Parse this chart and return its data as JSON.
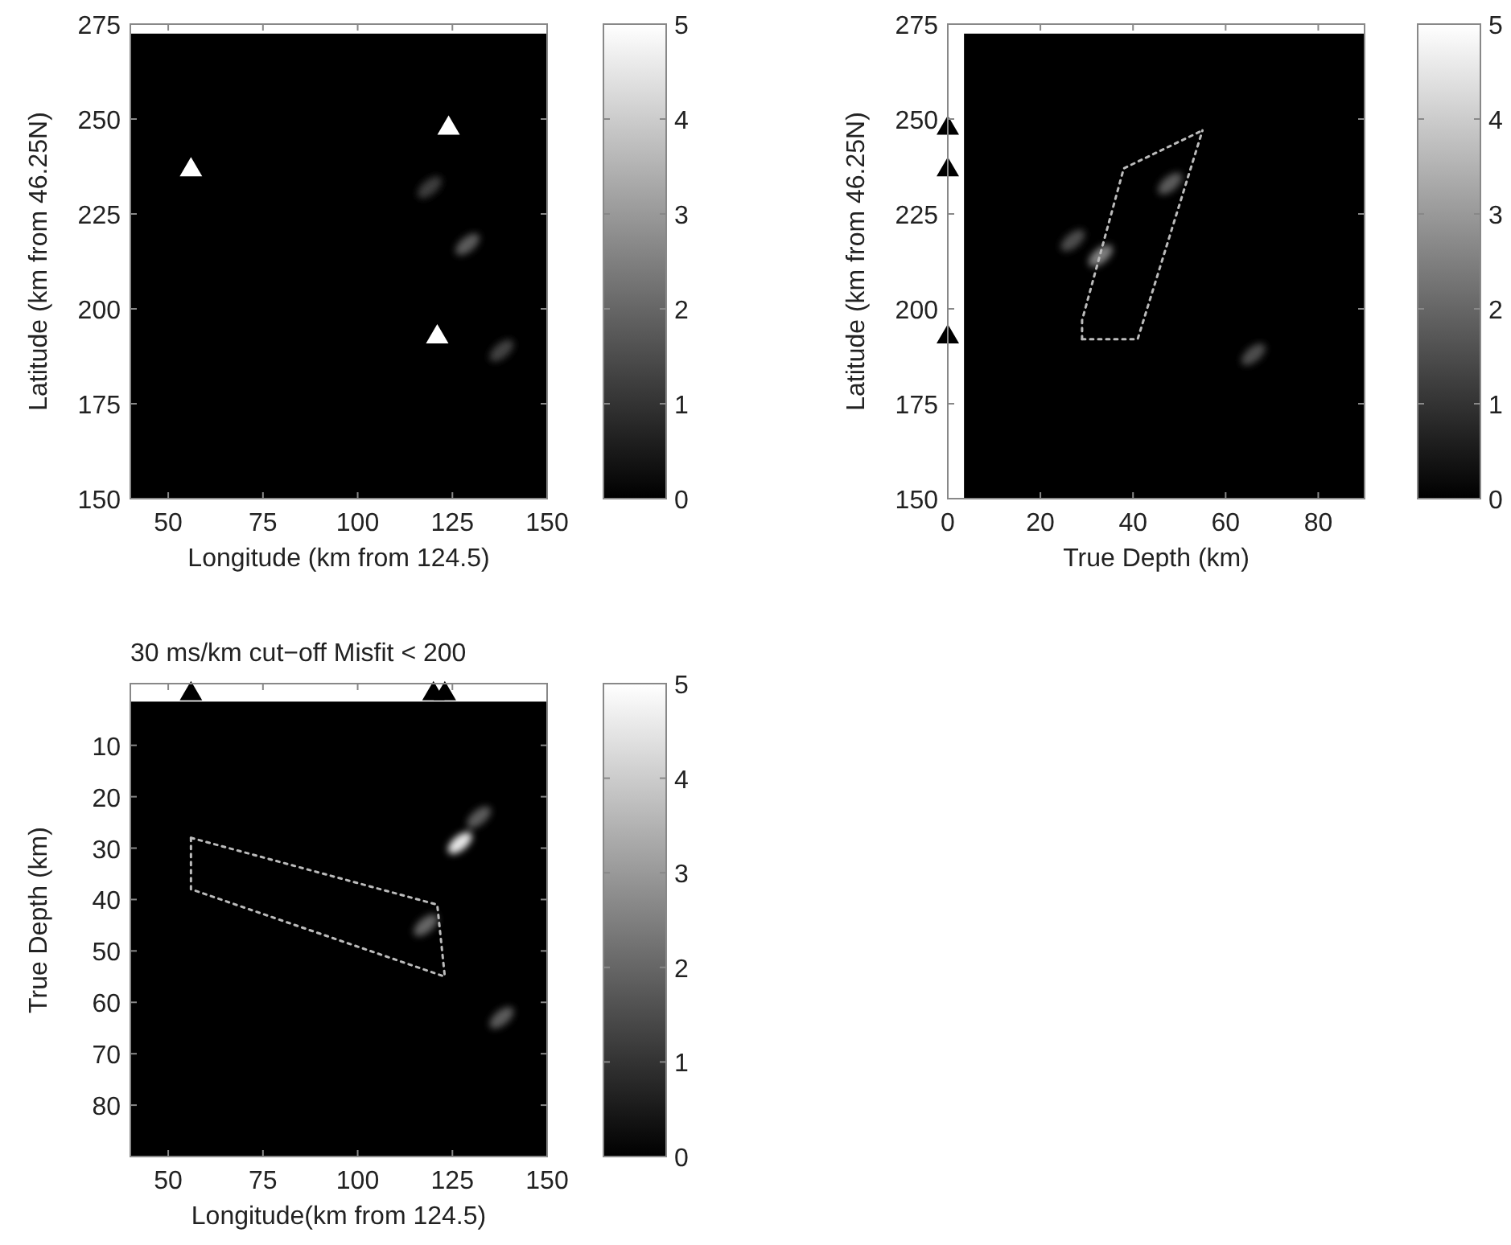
{
  "chart_data": [
    {
      "type": "scatter",
      "xlabel": "Longitude (km from 124.5)",
      "ylabel": "Latitude (km from 46.25N)",
      "xlim": [
        40,
        150
      ],
      "ylim": [
        150,
        275
      ],
      "xticks": [
        50,
        75,
        100,
        125,
        150
      ],
      "yticks": [
        150,
        175,
        200,
        225,
        250,
        275
      ],
      "clim": [
        0,
        5
      ],
      "cticks": [
        0,
        1,
        2,
        3,
        4,
        5
      ],
      "bands": [
        {
          "axis": "y",
          "from": 272.5,
          "to": 275,
          "color": "#ffffff"
        }
      ],
      "series": [
        {
          "marker": "circle",
          "x": [
            119,
            129,
            138
          ],
          "values": [
            232,
            217,
            189
          ],
          "colors": [
            "#3d3d3d",
            "#5c5c5c",
            "#424242"
          ]
        },
        {
          "marker": "triangle",
          "color": "#ffffff",
          "x": [
            56,
            124,
            121
          ],
          "values": [
            237,
            248,
            193
          ]
        }
      ]
    },
    {
      "type": "scatter",
      "xlabel": "True Depth (km)",
      "ylabel": "Latitude (km from 46.25N)",
      "xlim": [
        0,
        90
      ],
      "ylim": [
        150,
        275
      ],
      "xticks": [
        0,
        20,
        40,
        60,
        80
      ],
      "yticks": [
        150,
        175,
        200,
        225,
        250,
        275
      ],
      "clim": [
        0,
        5
      ],
      "cticks": [
        0,
        1,
        2,
        3,
        4,
        5
      ],
      "bands": [
        {
          "axis": "y",
          "from": 272.5,
          "to": 275,
          "color": "#ffffff"
        },
        {
          "axis": "x",
          "from": 0,
          "to": 3.5,
          "color": "#ffffff"
        }
      ],
      "series": [
        {
          "marker": "circle",
          "x": [
            27,
            33,
            48,
            66
          ],
          "values": [
            218,
            214,
            233,
            188
          ],
          "colors": [
            "#4d4d4d",
            "#808080",
            "#5c5c5c",
            "#4d4d4d"
          ]
        },
        {
          "type": "line",
          "line_style": "dotted",
          "color": "#bbbbbb",
          "x": [
            29,
            41,
            55
          ],
          "values": [
            192,
            192,
            247
          ]
        },
        {
          "type": "line",
          "line_style": "dotted",
          "color": "#bbbbbb",
          "x": [
            29,
            29,
            38,
            55
          ],
          "values": [
            192,
            197,
            237,
            247
          ]
        },
        {
          "marker": "triangle",
          "color": "#000000",
          "x": [
            0,
            0,
            0
          ],
          "values": [
            248,
            237,
            193
          ]
        }
      ]
    },
    {
      "type": "scatter",
      "title": "30 ms/km cut−off Misfit < 200",
      "xlabel": "Longitude(km from 124.5)",
      "ylabel": "True Depth (km)",
      "xlim": [
        40,
        150
      ],
      "ylim": [
        90,
        -2
      ],
      "xticks": [
        50,
        75,
        100,
        125,
        150
      ],
      "yticks": [
        10,
        20,
        30,
        40,
        50,
        60,
        70,
        80
      ],
      "clim": [
        0,
        5
      ],
      "cticks": [
        0,
        1,
        2,
        3,
        4,
        5
      ],
      "bands": [
        {
          "axis": "y",
          "from": -2,
          "to": 1.5,
          "color": "#ffffff"
        }
      ],
      "series": [
        {
          "marker": "circle",
          "x": [
            132,
            127,
            118,
            138
          ],
          "values": [
            24,
            29,
            45,
            63
          ],
          "colors": [
            "#5c5c5c",
            "#e6e6e6",
            "#666666",
            "#5c5c5c"
          ]
        },
        {
          "type": "line",
          "line_style": "dotted",
          "color": "#bbbbbb",
          "x": [
            56,
            121,
            123
          ],
          "values": [
            28,
            41,
            55
          ]
        },
        {
          "type": "line",
          "line_style": "dotted",
          "color": "#bbbbbb",
          "x": [
            56,
            56,
            123
          ],
          "values": [
            28,
            38,
            55
          ]
        },
        {
          "marker": "triangle",
          "color": "#000000",
          "x": [
            56,
            120,
            123
          ],
          "values": [
            -0.3,
            -0.3,
            -0.3
          ]
        }
      ]
    }
  ]
}
